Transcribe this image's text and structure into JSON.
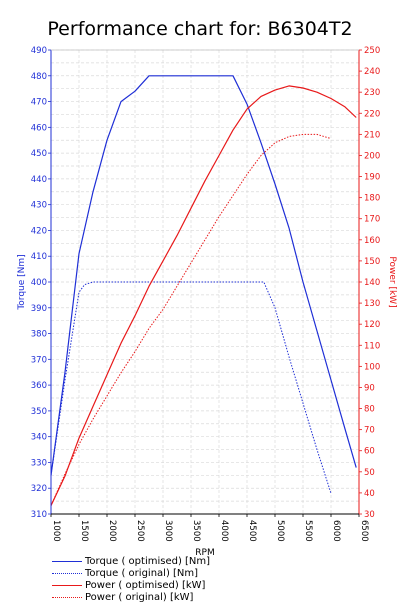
{
  "chart_data": {
    "type": "line",
    "title": "Performance chart for: B6304T2",
    "xlabel": "RPM",
    "ylabel_left": "Torque [Nm]",
    "ylabel_right": "Power [kW]",
    "xlim": [
      1000,
      6500
    ],
    "ylim_left": [
      310,
      490
    ],
    "ylim_right": [
      30,
      250
    ],
    "x_ticks": [
      "1000",
      "1500",
      "2000",
      "2500",
      "3000",
      "3500",
      "4000",
      "4500",
      "5000",
      "5500",
      "6000",
      "6500"
    ],
    "y_ticks_left": [
      "310",
      "320",
      "330",
      "340",
      "350",
      "360",
      "370",
      "380",
      "390",
      "400",
      "410",
      "420",
      "430",
      "440",
      "450",
      "460",
      "470",
      "480",
      "490"
    ],
    "y_ticks_right": [
      "30",
      "40",
      "50",
      "60",
      "70",
      "80",
      "90",
      "100",
      "110",
      "120",
      "130",
      "140",
      "150",
      "160",
      "170",
      "180",
      "190",
      "200",
      "210",
      "220",
      "230",
      "240",
      "250"
    ],
    "grid": true,
    "colors": {
      "torque": "#1f2fd6",
      "power": "#e8191a",
      "axis_left": "#1f2fd6",
      "axis_right": "#e8191a"
    },
    "series": [
      {
        "name": "Torque ( optimised) [Nm]",
        "axis": "left",
        "style": "solid",
        "color": "#1f2fd6",
        "x": [
          1000,
          1250,
          1500,
          1750,
          2000,
          2250,
          2500,
          2750,
          3000,
          3500,
          4000,
          4250,
          4500,
          4750,
          5000,
          5250,
          5500,
          5750,
          6000,
          6250,
          6450
        ],
        "y": [
          325,
          365,
          411,
          435,
          455,
          470,
          474,
          480,
          480,
          480,
          480,
          480,
          469,
          454,
          438,
          421,
          400,
          381,
          362,
          343,
          328
        ]
      },
      {
        "name": "Torque ( original) [Nm]",
        "axis": "left",
        "style": "dotted",
        "color": "#1f2fd6",
        "x": [
          1000,
          1250,
          1500,
          1600,
          1750,
          2000,
          2500,
          3000,
          3500,
          4000,
          4500,
          4800,
          5000,
          5250,
          5500,
          5750,
          6000
        ],
        "y": [
          325,
          362,
          396,
          399,
          400,
          400,
          400,
          400,
          400,
          400,
          400,
          400,
          390,
          371,
          353,
          335,
          318
        ]
      },
      {
        "name": "Power ( optimised) [kW]",
        "axis": "right",
        "style": "solid",
        "color": "#e8191a",
        "x": [
          1000,
          1250,
          1500,
          1750,
          2000,
          2250,
          2500,
          2750,
          3000,
          3250,
          3500,
          3750,
          4000,
          4250,
          4500,
          4750,
          5000,
          5250,
          5500,
          5750,
          6000,
          6250,
          6450
        ],
        "y": [
          34,
          48,
          66,
          81,
          96,
          111,
          124,
          138,
          150,
          162,
          175,
          188,
          200,
          212,
          222,
          228,
          231,
          233,
          232,
          230,
          227,
          223,
          218
        ]
      },
      {
        "name": "Power ( original) [kW]",
        "axis": "right",
        "style": "dotted",
        "color": "#e8191a",
        "x": [
          1000,
          1250,
          1500,
          1750,
          2000,
          2250,
          2500,
          2750,
          3000,
          3250,
          3500,
          3750,
          4000,
          4250,
          4500,
          4750,
          5000,
          5250,
          5500,
          5750,
          6000
        ],
        "y": [
          34,
          49,
          63,
          75,
          86,
          97,
          107,
          118,
          127,
          138,
          149,
          160,
          171,
          181,
          191,
          200,
          206,
          209,
          210,
          210,
          208
        ]
      }
    ]
  }
}
